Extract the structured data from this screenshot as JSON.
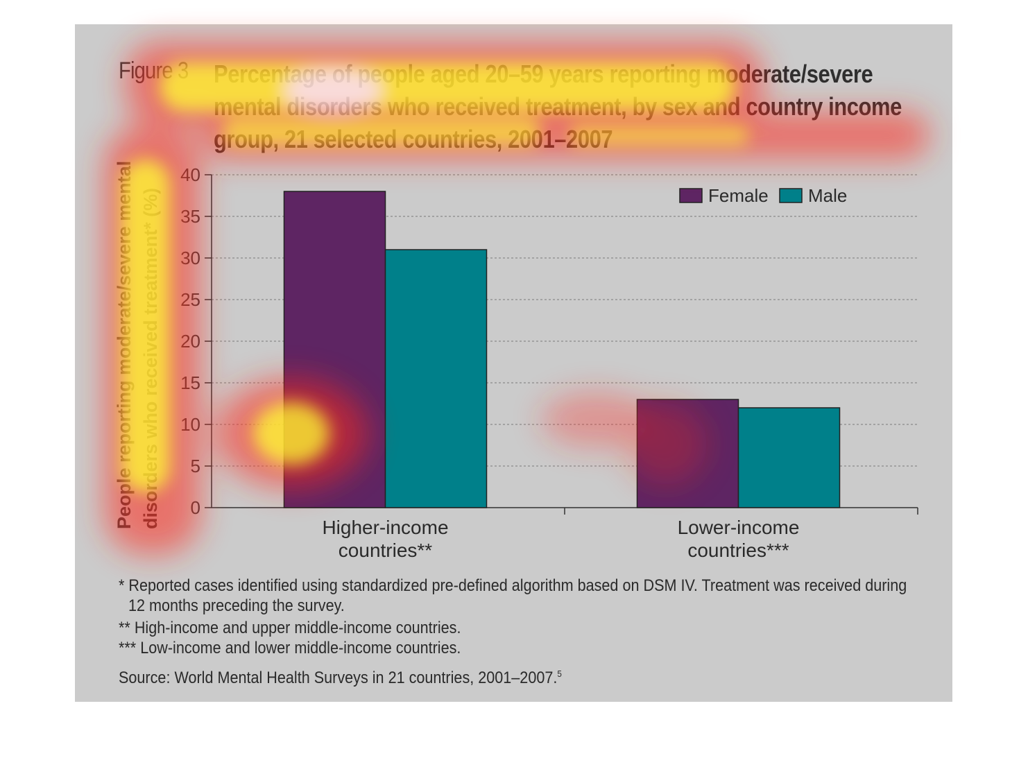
{
  "figure": {
    "label": "Figure 3",
    "title": "Percentage of people aged 20–59 years reporting moderate/severe mental disorders who received treatment, by sex and country income group, 21 selected countries, 2001–2007",
    "footnote_1a": "* Reported cases identified using standardized pre-defined algorithm based on DSM IV. Treatment was received during",
    "footnote_1b": "12 months preceding the survey.",
    "footnote_2": "** High-income and upper middle-income countries.",
    "footnote_3": "*** Low-income and lower middle-income countries.",
    "source": "Source: World Mental Health Surveys in 21 countries, 2001–2007.",
    "source_ref": "5"
  },
  "colors": {
    "female": "#5e2563",
    "male": "#00808a",
    "background": "#cbcbcb"
  },
  "chart_data": {
    "type": "bar",
    "title": "Percentage of people aged 20–59 years reporting moderate/severe mental disorders who received treatment, by sex and country income group, 21 selected countries, 2001–2007",
    "xlabel": "",
    "ylabel": "People reporting moderate/severe mental disorders who received treatment* (%)",
    "categories": [
      "Higher-income countries**",
      "Lower-income countries***"
    ],
    "category_lines": [
      [
        "Higher-income",
        "countries**"
      ],
      [
        "Lower-income",
        "countries***"
      ]
    ],
    "series": [
      {
        "name": "Female",
        "values": [
          38,
          13
        ]
      },
      {
        "name": "Male",
        "values": [
          31,
          12
        ]
      }
    ],
    "ylim": [
      0,
      40
    ],
    "yticks": [
      "0",
      "5",
      "10",
      "15",
      "20",
      "25",
      "30",
      "35",
      "40"
    ],
    "grid": true,
    "legend_position": "top-right"
  }
}
